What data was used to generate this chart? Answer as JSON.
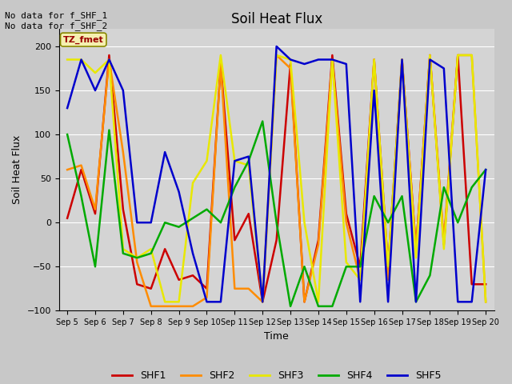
{
  "title": "Soil Heat Flux",
  "xlabel": "Time",
  "ylabel": "Soil Heat Flux",
  "ylim": [
    -100,
    220
  ],
  "yticks": [
    -100,
    -50,
    0,
    50,
    100,
    150,
    200
  ],
  "annotation_text": "No data for f_SHF_1\nNo data for f_SHF_2",
  "tz_label": "TZ_fmet",
  "fig_bg_color": "#c8c8c8",
  "plot_bg_color": "#d4d4d4",
  "series": {
    "SHF1": {
      "color": "#cc0000",
      "x": [
        5,
        5.5,
        6,
        6.5,
        7,
        7.5,
        8,
        8.5,
        9,
        9.5,
        10,
        10.5,
        11,
        11.5,
        12,
        12.5,
        13,
        13.5,
        14,
        14.5,
        15,
        15.5,
        16,
        16.5,
        17,
        17.5,
        18,
        18.5,
        19,
        19.5,
        20
      ],
      "y": [
        5,
        60,
        10,
        190,
        15,
        -70,
        -75,
        -30,
        -65,
        -60,
        -75,
        180,
        -20,
        10,
        -90,
        -20,
        180,
        -90,
        -20,
        190,
        10,
        -50,
        185,
        -50,
        185,
        -30,
        190,
        -25,
        190,
        -70,
        -70
      ]
    },
    "SHF2": {
      "color": "#ff8c00",
      "x": [
        5,
        5.5,
        6,
        6.5,
        7,
        7.5,
        8,
        8.5,
        9,
        9.5,
        10,
        10.5,
        11,
        11.5,
        12,
        12.5,
        13,
        13.5,
        14,
        14.5,
        15,
        15.5,
        16,
        16.5,
        17,
        17.5,
        18,
        18.5,
        19,
        19.5,
        20
      ],
      "y": [
        60,
        65,
        15,
        185,
        80,
        -45,
        -95,
        -95,
        -95,
        -95,
        -85,
        180,
        -75,
        -75,
        -90,
        190,
        175,
        -90,
        -25,
        185,
        0,
        -65,
        185,
        -65,
        185,
        -30,
        190,
        -20,
        190,
        190,
        -90
      ]
    },
    "SHF3": {
      "color": "#e8e800",
      "x": [
        5,
        5.5,
        6,
        6.5,
        7,
        7.5,
        8,
        8.5,
        9,
        9.5,
        10,
        10.5,
        11,
        11.5,
        12,
        12.5,
        13,
        13.5,
        14,
        14.5,
        15,
        15.5,
        16,
        16.5,
        17,
        17.5,
        18,
        18.5,
        19,
        19.5,
        20
      ],
      "y": [
        185,
        185,
        170,
        185,
        -30,
        -40,
        -30,
        -90,
        -90,
        45,
        70,
        190,
        70,
        65,
        -90,
        190,
        185,
        0,
        -90,
        185,
        -45,
        -65,
        185,
        -50,
        185,
        -40,
        190,
        -30,
        190,
        190,
        -90
      ]
    },
    "SHF4": {
      "color": "#00aa00",
      "x": [
        5,
        5.5,
        6,
        6.5,
        7,
        7.5,
        8,
        8.5,
        9,
        9.5,
        10,
        10.5,
        11,
        11.5,
        12,
        12.5,
        13,
        13.5,
        14,
        14.5,
        15,
        15.5,
        16,
        16.5,
        17,
        17.5,
        18,
        18.5,
        19,
        19.5,
        20
      ],
      "y": [
        100,
        30,
        -50,
        105,
        -35,
        -40,
        -35,
        0,
        -5,
        5,
        15,
        0,
        40,
        70,
        115,
        0,
        -95,
        -50,
        -95,
        -95,
        -50,
        -50,
        30,
        0,
        30,
        -90,
        -60,
        40,
        0,
        40,
        60
      ]
    },
    "SHF5": {
      "color": "#0000cc",
      "x": [
        5,
        5.5,
        6,
        6.5,
        7,
        7.5,
        8,
        8.5,
        9,
        9.5,
        10,
        10.5,
        11,
        11.5,
        12,
        12.5,
        13,
        13.5,
        14,
        14.5,
        15,
        15.5,
        16,
        16.5,
        17,
        17.5,
        18,
        18.5,
        19,
        19.5,
        20
      ],
      "y": [
        130,
        185,
        150,
        185,
        150,
        0,
        0,
        80,
        35,
        -35,
        -90,
        -90,
        70,
        75,
        -90,
        200,
        185,
        180,
        185,
        185,
        180,
        -90,
        150,
        -90,
        185,
        -90,
        185,
        175,
        -90,
        -90,
        60
      ]
    }
  },
  "xtick_positions": [
    5,
    6,
    7,
    8,
    9,
    10,
    11,
    12,
    13,
    14,
    15,
    16,
    17,
    18,
    19,
    20
  ],
  "xtick_labels": [
    "Sep 5",
    "Sep 6",
    "Sep 7",
    "Sep 8",
    "Sep 9",
    "Sep 10",
    "Sep 11",
    "Sep 12",
    "Sep 13",
    "Sep 14",
    "Sep 15",
    "Sep 16",
    "Sep 17",
    "Sep 18",
    "Sep 19",
    "Sep 20"
  ],
  "legend_order": [
    "SHF1",
    "SHF2",
    "SHF3",
    "SHF4",
    "SHF5"
  ],
  "linewidth": 1.8,
  "figsize": [
    6.4,
    4.8
  ],
  "dpi": 100
}
